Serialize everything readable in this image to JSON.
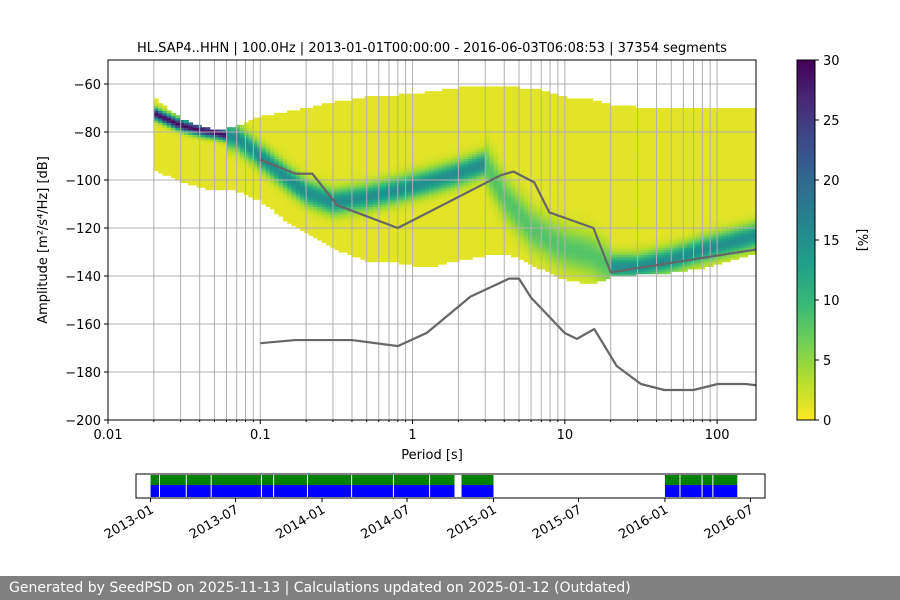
{
  "chart_data": [
    {
      "type": "heatmap",
      "title": "HL.SAP4..HHN | 100.0Hz | 2013-01-01T00:00:00 - 2016-06-03T06:08:53 | 37354 segments",
      "xlabel": "Period [s]",
      "ylabel": "Amplitude [m²/s⁴/Hz] [dB]",
      "x_scale": "log",
      "xlim": [
        0.01,
        180
      ],
      "ylim": [
        -200,
        -50
      ],
      "x_ticks": [
        0.01,
        0.1,
        1,
        10,
        100
      ],
      "x_tick_labels": [
        "0.01",
        "0.1",
        "1",
        "10",
        "100"
      ],
      "y_ticks": [
        -200,
        -180,
        -160,
        -140,
        -120,
        -100,
        -80,
        -60
      ],
      "y_tick_labels": [
        "−200",
        "−180",
        "−160",
        "−140",
        "−120",
        "−100",
        "−80",
        "−60"
      ],
      "grid": true,
      "colorbar": {
        "label": "[%]",
        "range": [
          0,
          30
        ],
        "ticks": [
          0,
          5,
          10,
          15,
          20,
          25,
          30
        ],
        "tick_labels": [
          "0",
          "5",
          "10",
          "15",
          "20",
          "25",
          "30"
        ],
        "colormap": [
          "#fde725",
          "#b5de2b",
          "#6ece58",
          "#35b779",
          "#1f9e89",
          "#26828e",
          "#31688e",
          "#3e4989",
          "#482878",
          "#440154"
        ]
      },
      "psd_envelope": {
        "period": [
          0.02,
          0.03,
          0.05,
          0.07,
          0.1,
          0.15,
          0.22,
          0.3,
          0.5,
          0.8,
          1.2,
          2,
          3,
          4,
          5,
          6,
          8,
          10,
          15,
          20,
          30,
          50,
          80,
          120,
          180
        ],
        "upper": [
          -66,
          -75,
          -80,
          -78,
          -74,
          -72,
          -70,
          -68,
          -66,
          -65,
          -64,
          -62,
          -61,
          -61,
          -62,
          -62,
          -64,
          -66,
          -67,
          -69,
          -70,
          -70,
          -70,
          -70,
          -70
        ],
        "lower": [
          -95,
          -100,
          -104,
          -104,
          -108,
          -117,
          -123,
          -128,
          -133,
          -134,
          -136,
          -133,
          -131,
          -130,
          -132,
          -135,
          -138,
          -141,
          -143,
          -140,
          -139,
          -138,
          -136,
          -133,
          -130
        ]
      },
      "mode_curve": {
        "period": [
          0.02,
          0.03,
          0.04,
          0.05,
          0.07,
          0.1,
          0.15,
          0.2,
          0.3,
          0.5,
          0.8,
          1.2,
          2,
          3,
          4,
          5,
          6,
          8,
          10,
          15,
          20,
          30,
          50,
          80,
          120,
          180
        ],
        "db": [
          -72,
          -77,
          -79,
          -80,
          -82,
          -90,
          -99,
          -105,
          -109,
          -107,
          -104,
          -101,
          -97,
          -93,
          -107,
          -114,
          -120,
          -125,
          -128,
          -131,
          -136,
          -136,
          -133,
          -129,
          -126,
          -123
        ]
      },
      "nhnm": {
        "name": "NHNM",
        "period": [
          0.1,
          0.17,
          0.22,
          0.32,
          0.8,
          3.8,
          4.6,
          6.3,
          7.9,
          15.4,
          20,
          354
        ],
        "db": [
          -91.5,
          -97.4,
          -97.4,
          -110.5,
          -120.0,
          -98.0,
          -96.5,
          -101.0,
          -113.5,
          -120.0,
          -138.5,
          -126.0
        ]
      },
      "nlnm": {
        "name": "NLNM",
        "period": [
          0.1,
          0.17,
          0.4,
          0.8,
          1.24,
          2.4,
          4.3,
          5.0,
          6.0,
          10.0,
          12.0,
          15.6,
          21.9,
          31.6,
          45,
          70,
          101,
          154,
          328
        ],
        "db": [
          -168.0,
          -166.7,
          -166.7,
          -169.2,
          -163.7,
          -148.6,
          -141.1,
          -141.1,
          -149.0,
          -163.8,
          -166.2,
          -162.1,
          -177.5,
          -185.0,
          -187.5,
          -187.5,
          -185.0,
          -185.0,
          -187.5
        ]
      },
      "minor_gridlines_period": [
        0.02,
        0.03,
        0.04,
        0.05,
        0.06,
        0.07,
        0.08,
        0.09,
        0.2,
        0.3,
        0.4,
        0.5,
        0.6,
        0.7,
        0.8,
        0.9,
        2,
        3,
        4,
        5,
        6,
        7,
        8,
        9,
        20,
        30,
        40,
        50,
        60,
        70,
        80,
        90
      ]
    },
    {
      "type": "timeline",
      "time_range": [
        "2012-12-01",
        "2016-08-01"
      ],
      "tick_labels": [
        "2013-01",
        "2013-07",
        "2014-01",
        "2014-07",
        "2015-01",
        "2015-07",
        "2016-01",
        "2016-07"
      ],
      "tick_dates": [
        "2013-01-01",
        "2013-07-01",
        "2014-01-01",
        "2014-07-01",
        "2015-01-01",
        "2015-07-01",
        "2016-01-01",
        "2016-07-01"
      ],
      "coverage_color": "#008000",
      "processed_color": "#0000ff",
      "coverage_intervals": [
        [
          "2013-01-01",
          "2014-10-10"
        ],
        [
          "2014-10-25",
          "2015-01-01"
        ],
        [
          "2016-01-01",
          "2016-06-03"
        ]
      ],
      "gaps": [
        "2013-01-20",
        "2013-03-18",
        "2013-05-10",
        "2013-08-25",
        "2013-09-20",
        "2013-12-01",
        "2014-03-05",
        "2014-06-02",
        "2014-08-18",
        "2015-03-20",
        "2016-02-02",
        "2016-03-20",
        "2016-04-12"
      ]
    }
  ],
  "footer": {
    "text": "Generated by SeedPSD on 2025-11-13 | Calculations updated on 2025-01-12 (Outdated)"
  }
}
